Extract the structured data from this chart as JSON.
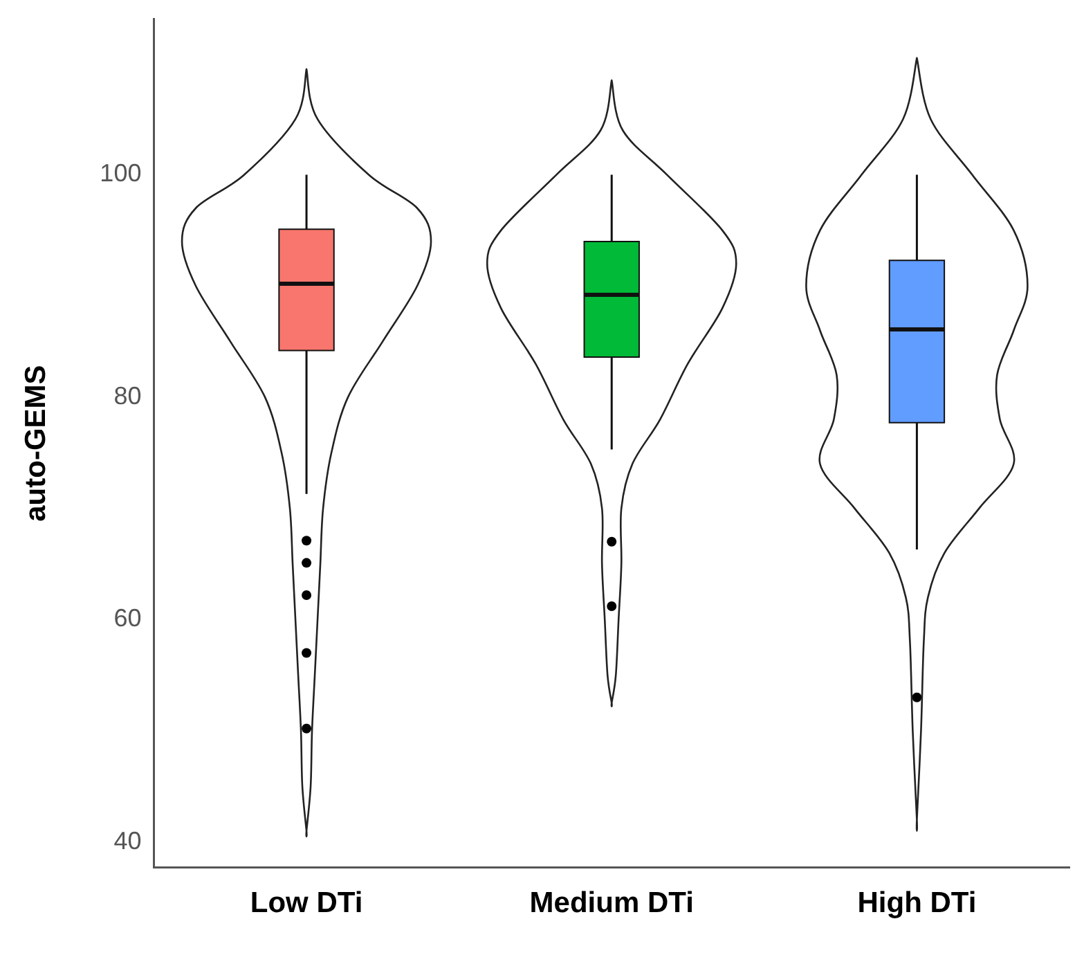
{
  "chart_data": {
    "type": "box",
    "ylabel": "auto-GEMS",
    "categories": [
      "Low DTi",
      "Medium DTi",
      "High DTi"
    ],
    "colors": [
      "#f8766d",
      "#00ba38",
      "#619cff"
    ],
    "boxes": [
      {
        "low": 71.3,
        "q1": 84.2,
        "median": 90.2,
        "q3": 95.1,
        "high": 100,
        "outliers": [
          67.1,
          65.1,
          62.2,
          57,
          50.2
        ]
      },
      {
        "low": 75.3,
        "q1": 83.6,
        "median": 89.2,
        "q3": 94,
        "high": 100,
        "outliers": [
          67,
          61.2
        ]
      },
      {
        "low": 66.3,
        "q1": 77.7,
        "median": 86.1,
        "q3": 92.3,
        "high": 100,
        "outliers": [
          53
        ]
      }
    ],
    "ylim": [
      37.7,
      114
    ],
    "yticks": [
      40,
      60,
      80,
      100
    ],
    "grid": false,
    "legend": false
  }
}
